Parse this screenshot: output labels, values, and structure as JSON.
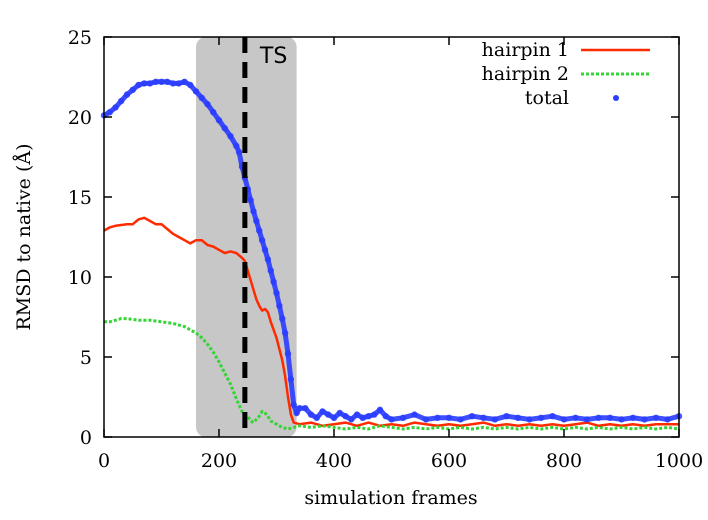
{
  "chart_data": {
    "type": "line",
    "title": "",
    "xlabel": "simulation frames",
    "ylabel": "RMSD to native (Å)",
    "xlim": [
      0,
      1000
    ],
    "ylim": [
      0,
      25
    ],
    "xticks": [
      0,
      200,
      400,
      600,
      800,
      1000
    ],
    "yticks": [
      0,
      5,
      10,
      15,
      20,
      25
    ],
    "grid": false,
    "legend_position": "top-right",
    "shaded_region": {
      "x_start": 160,
      "x_end": 335,
      "color": "#bdbdbd"
    },
    "ts_line": {
      "x": 245,
      "label": "TS"
    },
    "series": [
      {
        "name": "hairpin 1",
        "color": "#ff2a00",
        "style": "solid",
        "points": [
          [
            0,
            12.9
          ],
          [
            10,
            13.1
          ],
          [
            20,
            13.2
          ],
          [
            40,
            13.3
          ],
          [
            50,
            13.3
          ],
          [
            60,
            13.6
          ],
          [
            70,
            13.7
          ],
          [
            80,
            13.5
          ],
          [
            90,
            13.3
          ],
          [
            100,
            13.3
          ],
          [
            110,
            13.0
          ],
          [
            120,
            12.7
          ],
          [
            130,
            12.5
          ],
          [
            140,
            12.3
          ],
          [
            150,
            12.1
          ],
          [
            160,
            12.3
          ],
          [
            170,
            12.3
          ],
          [
            180,
            12.0
          ],
          [
            190,
            11.9
          ],
          [
            200,
            11.7
          ],
          [
            210,
            11.5
          ],
          [
            220,
            11.6
          ],
          [
            230,
            11.5
          ],
          [
            240,
            11.2
          ],
          [
            245,
            11.0
          ],
          [
            250,
            10.4
          ],
          [
            255,
            9.8
          ],
          [
            260,
            9.2
          ],
          [
            265,
            8.6
          ],
          [
            270,
            8.2
          ],
          [
            275,
            7.9
          ],
          [
            280,
            8.0
          ],
          [
            285,
            7.8
          ],
          [
            290,
            7.2
          ],
          [
            300,
            6.2
          ],
          [
            310,
            4.8
          ],
          [
            315,
            3.8
          ],
          [
            320,
            2.5
          ],
          [
            325,
            1.4
          ],
          [
            330,
            0.9
          ],
          [
            340,
            0.8
          ],
          [
            360,
            0.9
          ],
          [
            380,
            0.7
          ],
          [
            400,
            0.8
          ],
          [
            420,
            0.9
          ],
          [
            440,
            0.7
          ],
          [
            460,
            0.9
          ],
          [
            480,
            0.7
          ],
          [
            500,
            0.8
          ],
          [
            520,
            0.7
          ],
          [
            540,
            0.9
          ],
          [
            560,
            0.8
          ],
          [
            580,
            0.7
          ],
          [
            600,
            0.8
          ],
          [
            620,
            0.7
          ],
          [
            640,
            0.8
          ],
          [
            660,
            0.9
          ],
          [
            680,
            0.7
          ],
          [
            700,
            0.8
          ],
          [
            720,
            0.7
          ],
          [
            740,
            0.8
          ],
          [
            760,
            0.7
          ],
          [
            780,
            0.8
          ],
          [
            800,
            0.7
          ],
          [
            820,
            0.8
          ],
          [
            840,
            0.9
          ],
          [
            860,
            0.7
          ],
          [
            880,
            0.8
          ],
          [
            900,
            0.7
          ],
          [
            920,
            0.8
          ],
          [
            940,
            0.7
          ],
          [
            960,
            0.8
          ],
          [
            980,
            0.8
          ],
          [
            1000,
            0.8
          ]
        ]
      },
      {
        "name": "hairpin 2",
        "color": "#33d433",
        "style": "dotted",
        "points": [
          [
            0,
            7.2
          ],
          [
            10,
            7.2
          ],
          [
            20,
            7.3
          ],
          [
            30,
            7.4
          ],
          [
            40,
            7.4
          ],
          [
            60,
            7.3
          ],
          [
            80,
            7.3
          ],
          [
            100,
            7.2
          ],
          [
            120,
            7.1
          ],
          [
            140,
            6.9
          ],
          [
            160,
            6.5
          ],
          [
            170,
            6.2
          ],
          [
            180,
            5.8
          ],
          [
            190,
            5.3
          ],
          [
            200,
            4.7
          ],
          [
            210,
            4.0
          ],
          [
            220,
            3.3
          ],
          [
            230,
            2.4
          ],
          [
            240,
            1.6
          ],
          [
            250,
            1.3
          ],
          [
            255,
            1.0
          ],
          [
            260,
            0.9
          ],
          [
            265,
            1.1
          ],
          [
            270,
            1.3
          ],
          [
            275,
            1.6
          ],
          [
            280,
            1.5
          ],
          [
            285,
            1.3
          ],
          [
            290,
            1.0
          ],
          [
            300,
            0.8
          ],
          [
            310,
            0.6
          ],
          [
            320,
            0.5
          ],
          [
            330,
            0.6
          ],
          [
            340,
            0.7
          ],
          [
            360,
            0.6
          ],
          [
            380,
            0.7
          ],
          [
            400,
            0.6
          ],
          [
            420,
            0.5
          ],
          [
            440,
            0.6
          ],
          [
            460,
            0.5
          ],
          [
            480,
            0.7
          ],
          [
            500,
            0.6
          ],
          [
            520,
            0.5
          ],
          [
            540,
            0.6
          ],
          [
            560,
            0.5
          ],
          [
            580,
            0.6
          ],
          [
            600,
            0.5
          ],
          [
            620,
            0.6
          ],
          [
            640,
            0.5
          ],
          [
            660,
            0.6
          ],
          [
            680,
            0.5
          ],
          [
            700,
            0.6
          ],
          [
            720,
            0.5
          ],
          [
            740,
            0.6
          ],
          [
            760,
            0.5
          ],
          [
            780,
            0.6
          ],
          [
            800,
            0.5
          ],
          [
            820,
            0.6
          ],
          [
            840,
            0.5
          ],
          [
            860,
            0.6
          ],
          [
            880,
            0.5
          ],
          [
            900,
            0.6
          ],
          [
            920,
            0.5
          ],
          [
            940,
            0.6
          ],
          [
            960,
            0.5
          ],
          [
            980,
            0.6
          ],
          [
            1000,
            0.5
          ]
        ]
      },
      {
        "name": "total",
        "color": "#2a3cff",
        "style": "points",
        "points": [
          [
            0,
            20.1
          ],
          [
            10,
            20.3
          ],
          [
            20,
            20.6
          ],
          [
            30,
            21.0
          ],
          [
            40,
            21.4
          ],
          [
            50,
            21.7
          ],
          [
            60,
            22.0
          ],
          [
            70,
            22.1
          ],
          [
            80,
            22.1
          ],
          [
            90,
            22.2
          ],
          [
            100,
            22.2
          ],
          [
            110,
            22.2
          ],
          [
            120,
            22.1
          ],
          [
            130,
            22.1
          ],
          [
            140,
            22.2
          ],
          [
            150,
            22.0
          ],
          [
            160,
            21.6
          ],
          [
            170,
            21.2
          ],
          [
            180,
            20.8
          ],
          [
            190,
            20.3
          ],
          [
            200,
            19.8
          ],
          [
            210,
            19.3
          ],
          [
            220,
            18.8
          ],
          [
            230,
            18.2
          ],
          [
            235,
            17.8
          ],
          [
            240,
            16.9
          ],
          [
            245,
            16.2
          ],
          [
            250,
            15.5
          ],
          [
            255,
            14.8
          ],
          [
            260,
            14.1
          ],
          [
            265,
            13.5
          ],
          [
            270,
            12.9
          ],
          [
            275,
            12.3
          ],
          [
            280,
            11.7
          ],
          [
            285,
            11.1
          ],
          [
            290,
            10.4
          ],
          [
            295,
            9.7
          ],
          [
            300,
            9.0
          ],
          [
            305,
            8.2
          ],
          [
            310,
            7.4
          ],
          [
            315,
            6.5
          ],
          [
            320,
            5.2
          ],
          [
            325,
            3.6
          ],
          [
            330,
            2.0
          ],
          [
            335,
            1.5
          ],
          [
            340,
            1.8
          ],
          [
            350,
            1.8
          ],
          [
            360,
            1.4
          ],
          [
            370,
            1.2
          ],
          [
            380,
            1.6
          ],
          [
            390,
            1.4
          ],
          [
            400,
            1.2
          ],
          [
            410,
            1.5
          ],
          [
            420,
            1.3
          ],
          [
            430,
            1.1
          ],
          [
            440,
            1.4
          ],
          [
            450,
            1.2
          ],
          [
            460,
            1.3
          ],
          [
            470,
            1.4
          ],
          [
            480,
            1.7
          ],
          [
            490,
            1.3
          ],
          [
            500,
            1.1
          ],
          [
            520,
            1.2
          ],
          [
            540,
            1.4
          ],
          [
            560,
            1.1
          ],
          [
            580,
            1.2
          ],
          [
            600,
            1.2
          ],
          [
            620,
            1.1
          ],
          [
            640,
            1.3
          ],
          [
            660,
            1.2
          ],
          [
            680,
            1.1
          ],
          [
            700,
            1.3
          ],
          [
            720,
            1.2
          ],
          [
            740,
            1.1
          ],
          [
            760,
            1.2
          ],
          [
            780,
            1.3
          ],
          [
            800,
            1.1
          ],
          [
            820,
            1.2
          ],
          [
            840,
            1.1
          ],
          [
            860,
            1.2
          ],
          [
            880,
            1.2
          ],
          [
            900,
            1.1
          ],
          [
            920,
            1.2
          ],
          [
            940,
            1.1
          ],
          [
            960,
            1.2
          ],
          [
            980,
            1.1
          ],
          [
            1000,
            1.3
          ]
        ]
      }
    ]
  }
}
